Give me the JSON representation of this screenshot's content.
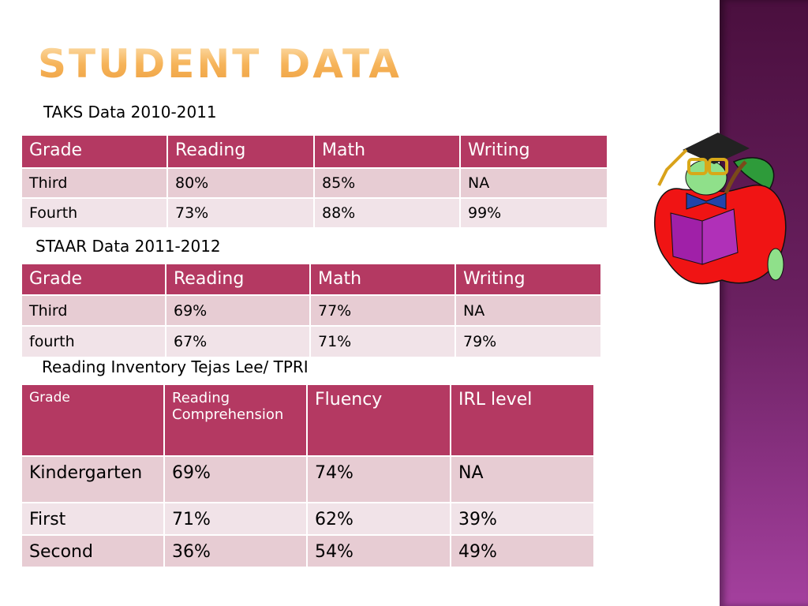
{
  "title": "STUDENT DATA",
  "tables": [
    {
      "label": "TAKS Data 2010-2011",
      "headers": [
        "Grade",
        "Reading",
        "Math",
        "Writing"
      ],
      "rows": [
        [
          "Third",
          "80%",
          "85%",
          "NA"
        ],
        [
          "Fourth",
          "73%",
          "88%",
          "99%"
        ]
      ]
    },
    {
      "label": "STAAR Data 2011-2012",
      "headers": [
        "Grade",
        "Reading",
        "Math",
        "Writing"
      ],
      "rows": [
        [
          "Third",
          "69%",
          "77%",
          "NA"
        ],
        [
          "fourth",
          "67%",
          "71%",
          "79%"
        ]
      ]
    },
    {
      "label": "Reading Inventory Tejas Lee/ TPRI",
      "headers": [
        "Grade",
        "Reading Comprehension",
        "Fluency",
        "IRL level"
      ],
      "rows": [
        [
          "Kindergarten",
          "69%",
          "74%",
          "NA"
        ],
        [
          "First",
          "71%",
          "62%",
          "39%"
        ],
        [
          "Second",
          "36%",
          "54%",
          "49%"
        ]
      ]
    }
  ],
  "colors": {
    "header": "#b43962",
    "row_odd": "#e7ccd3",
    "row_even": "#f1e3e8",
    "side_bar": "#6a2060"
  }
}
